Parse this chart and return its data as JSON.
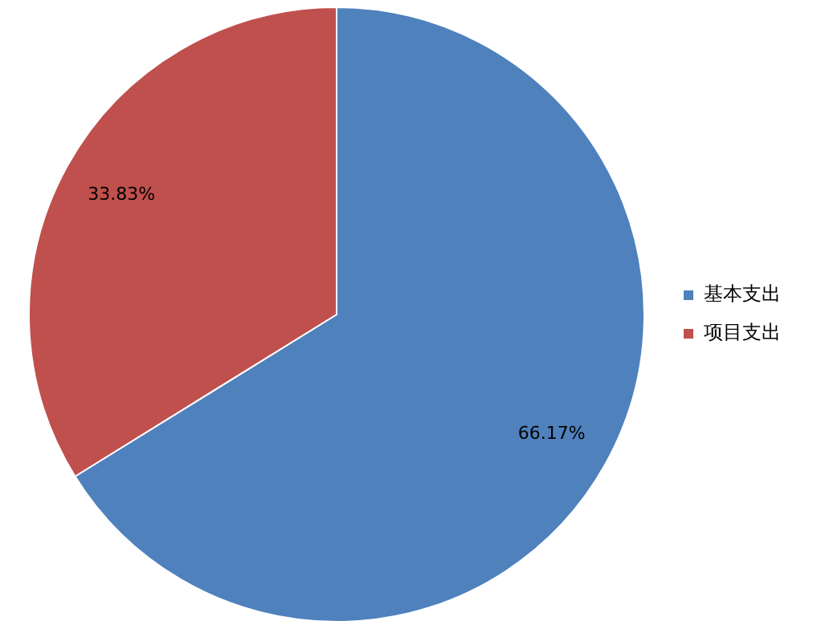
{
  "chart_data": {
    "type": "pie",
    "categories": [
      "基本支出",
      "项目支出"
    ],
    "values": [
      66.17,
      33.83
    ],
    "colors": [
      "#4f81bd",
      "#c0504d"
    ],
    "value_labels": [
      "66.17%",
      "33.83%"
    ],
    "legend": "right"
  }
}
